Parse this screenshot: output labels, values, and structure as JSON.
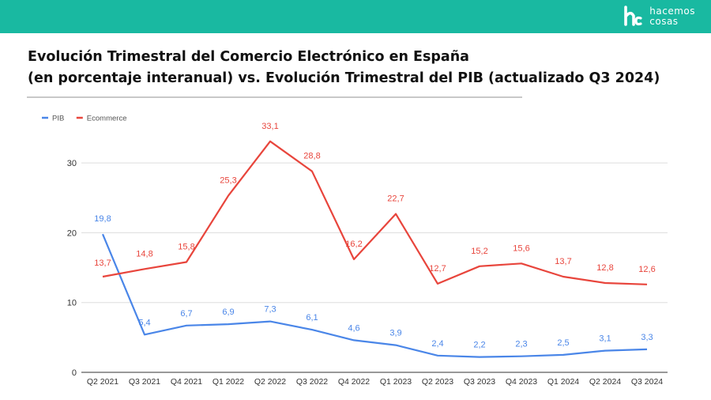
{
  "brand": {
    "line1": "hacemos",
    "line2": "cosas",
    "color": "#19b9a1"
  },
  "title": {
    "line1": "Evolución Trimestral del Comercio Electrónico en España",
    "line2": "(en porcentaje interanual) vs. Evolución Trimestral del PIB (actualizado Q3 2024)"
  },
  "chart_data": {
    "type": "line",
    "categories": [
      "Q2 2021",
      "Q3 2021",
      "Q4 2021",
      "Q1 2022",
      "Q2 2022",
      "Q3 2022",
      "Q4 2022",
      "Q1 2023",
      "Q2 2023",
      "Q3 2023",
      "Q4 2023",
      "Q1 2024",
      "Q2 2024",
      "Q3 2024"
    ],
    "series": [
      {
        "name": "PIB",
        "color": "#4a86e8",
        "values": [
          19.8,
          5.4,
          6.7,
          6.9,
          7.3,
          6.1,
          4.6,
          3.9,
          2.4,
          2.2,
          2.3,
          2.5,
          3.1,
          3.3
        ],
        "labels": [
          "19,8",
          "5,4",
          "6,7",
          "6,9",
          "7,3",
          "6,1",
          "4,6",
          "3,9",
          "2,4",
          "2,2",
          "2,3",
          "2,5",
          "3,1",
          "3,3"
        ]
      },
      {
        "name": "Ecommerce",
        "color": "#e8453c",
        "values": [
          13.7,
          14.8,
          15.8,
          25.3,
          33.1,
          28.8,
          16.2,
          22.7,
          12.7,
          15.2,
          15.6,
          13.7,
          12.8,
          12.6
        ],
        "labels": [
          "13,7",
          "14,8",
          "15,8",
          "25,3",
          "33,1",
          "28,8",
          "16,2",
          "22,7",
          "12,7",
          "15,2",
          "15,6",
          "13,7",
          "12,8",
          "12,6"
        ]
      }
    ],
    "ylim": [
      0,
      35
    ],
    "yticks": [
      0,
      10,
      20,
      30
    ],
    "xlabel": "",
    "ylabel": "",
    "grid": true,
    "legend": "top-left"
  }
}
